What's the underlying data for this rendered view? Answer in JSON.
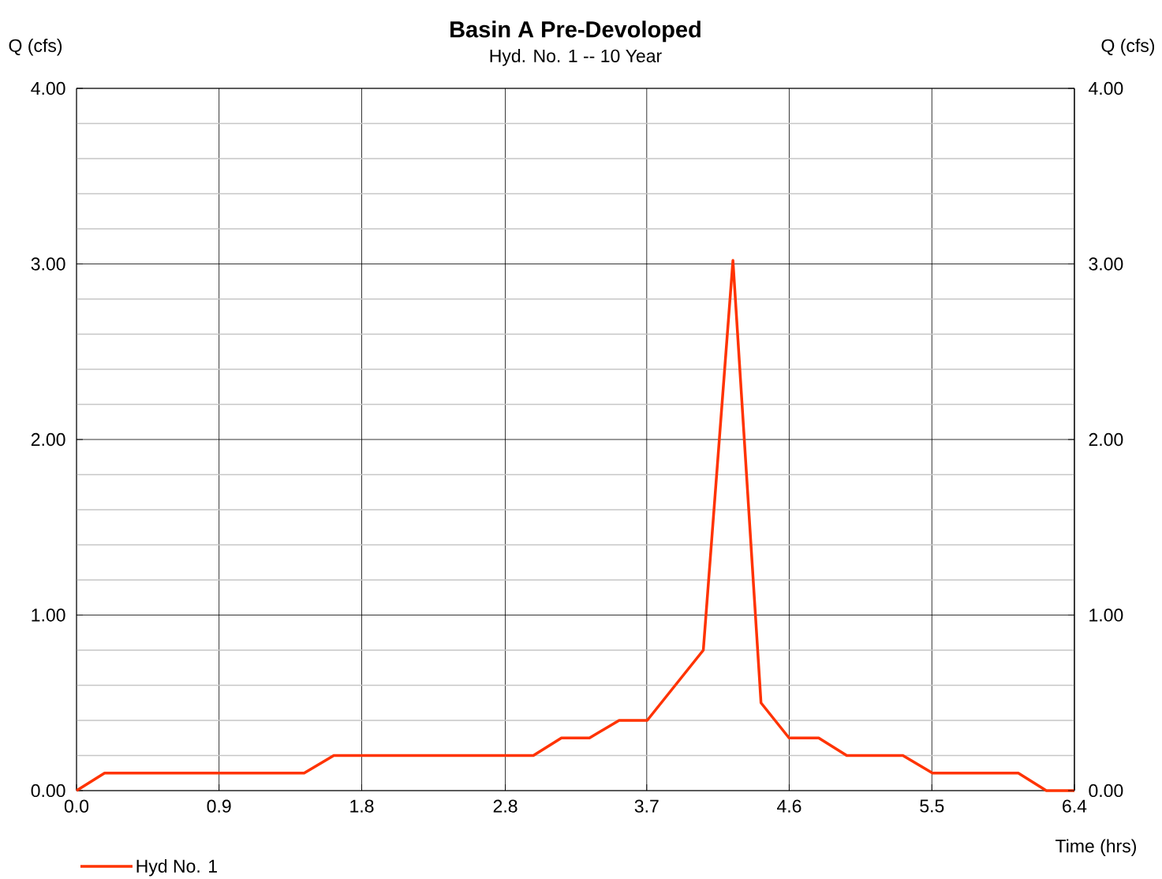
{
  "chart_data": {
    "type": "line",
    "title": "Basin A Pre-Devoloped",
    "subtitle": "Hyd. No. 1 -- 10 Year",
    "xlabel": "Time (hrs)",
    "ylabel": "Q (cfs)",
    "y2label": "Q (cfs)",
    "series": [
      {
        "name": "Hyd No. 1",
        "color": "#ff3300",
        "x": [
          0,
          0.18,
          1.46,
          1.65,
          2.93,
          3.11,
          3.29,
          3.48,
          3.66,
          4.02,
          4.21,
          4.39,
          4.57,
          4.76,
          4.94,
          5.3,
          5.49,
          6.04,
          6.22,
          6.4
        ],
        "values": [
          0,
          0.1,
          0.1,
          0.2,
          0.2,
          0.3,
          0.3,
          0.4,
          0.4,
          0.8,
          3.02,
          0.5,
          0.3,
          0.3,
          0.2,
          0.2,
          0.1,
          0.1,
          0,
          0
        ]
      }
    ],
    "xlim": [
      0,
      6.4
    ],
    "xticks": [
      {
        "value": 0,
        "label": "0.0"
      },
      {
        "value": 0.914,
        "label": "0.9"
      },
      {
        "value": 1.829,
        "label": "1.8"
      },
      {
        "value": 2.75,
        "label": "2.8"
      },
      {
        "value": 3.657,
        "label": "3.7"
      },
      {
        "value": 4.571,
        "label": "4.6"
      },
      {
        "value": 5.486,
        "label": "5.5"
      },
      {
        "value": 6.4,
        "label": "6.4"
      }
    ],
    "ylim": [
      0,
      4
    ],
    "yticks": [
      {
        "value": 0,
        "label": "0.00"
      },
      {
        "value": 1,
        "label": "1.00"
      },
      {
        "value": 2,
        "label": "2.00"
      },
      {
        "value": 3,
        "label": "3.00"
      },
      {
        "value": 4,
        "label": "4.00"
      }
    ],
    "y2lim": [
      0,
      4
    ],
    "y2ticks": [
      {
        "value": 0,
        "label": "0.00"
      },
      {
        "value": 1,
        "label": "1.00"
      },
      {
        "value": 2,
        "label": "2.00"
      },
      {
        "value": 3,
        "label": "3.00"
      },
      {
        "value": 4,
        "label": "4.00"
      }
    ],
    "grid": true,
    "legend": "bottom left",
    "marker": "none",
    "line_style": "solid"
  }
}
